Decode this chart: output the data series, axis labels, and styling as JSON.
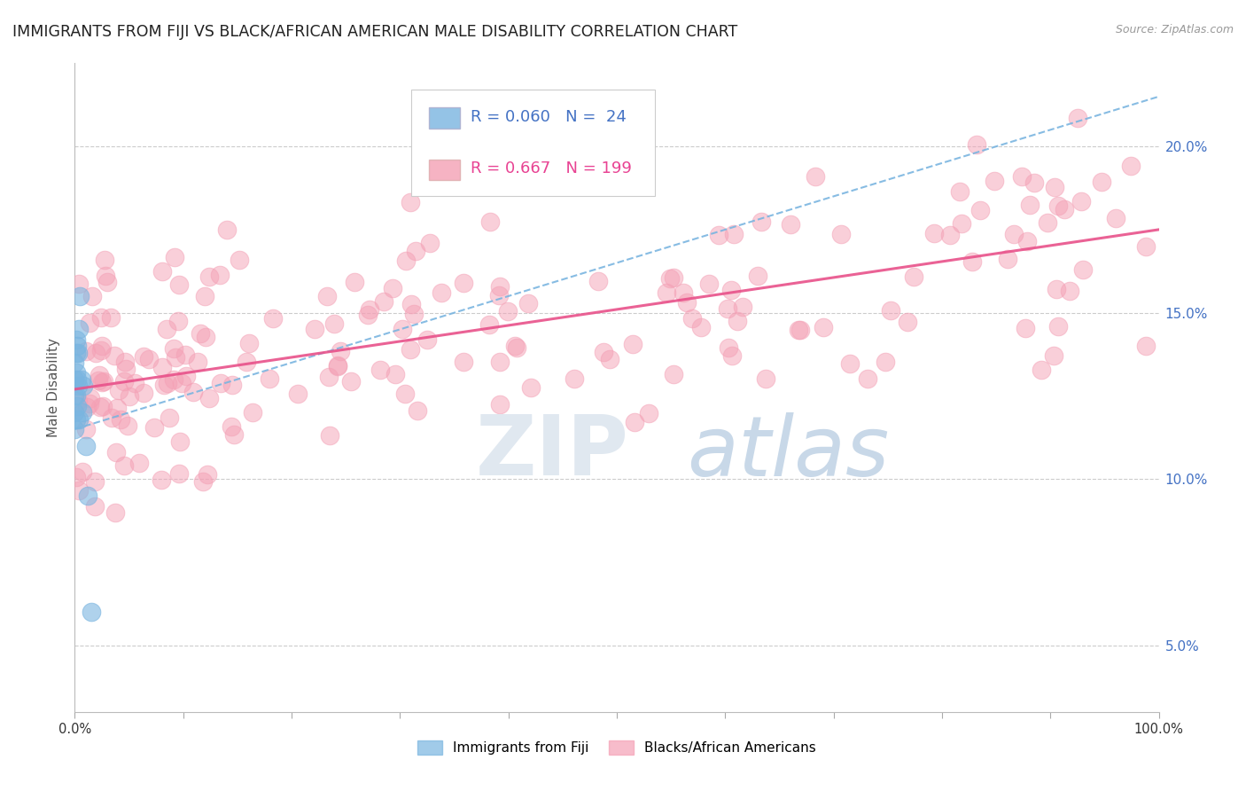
{
  "title": "IMMIGRANTS FROM FIJI VS BLACK/AFRICAN AMERICAN MALE DISABILITY CORRELATION CHART",
  "source": "Source: ZipAtlas.com",
  "ylabel": "Male Disability",
  "ytick_values": [
    0.05,
    0.1,
    0.15,
    0.2
  ],
  "ytick_labels": [
    "5.0%",
    "10.0%",
    "15.0%",
    "20.0%"
  ],
  "xlim": [
    0.0,
    1.0
  ],
  "ylim": [
    0.03,
    0.225
  ],
  "fiji_color": "#7ab5e0",
  "pink_color": "#f4a0b5",
  "fiji_R": 0.06,
  "fiji_N": 24,
  "pink_R": 0.667,
  "pink_N": 199,
  "legend_fiji_label": "Immigrants from Fiji",
  "legend_pink_label": "Blacks/African Americans",
  "fiji_trend": [
    0.115,
    0.215
  ],
  "pink_trend": [
    0.127,
    0.175
  ]
}
